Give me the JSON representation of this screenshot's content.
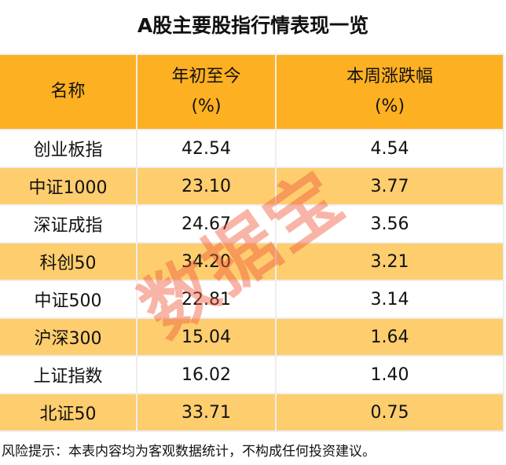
{
  "title": "A股主要股指行情表现一览",
  "chart_data": {
    "type": "table",
    "columns": [
      {
        "line1": "名称",
        "line2": ""
      },
      {
        "line1": "年初至今",
        "line2": "(%)"
      },
      {
        "line1": "本周涨跌幅",
        "line2": "(%)"
      }
    ],
    "rows": [
      [
        "创业板指",
        "42.54",
        "4.54"
      ],
      [
        "中证1000",
        "23.10",
        "3.77"
      ],
      [
        "深证成指",
        "24.67",
        "3.56"
      ],
      [
        "科创50",
        "34.20",
        "3.21"
      ],
      [
        "中证500",
        "22.81",
        "3.14"
      ],
      [
        "沪深300",
        "15.04",
        "1.64"
      ],
      [
        "上证指数",
        "16.02",
        "1.40"
      ],
      [
        "北证50",
        "33.71",
        "0.75"
      ]
    ]
  },
  "colors": {
    "header": "#fdb022",
    "row_alt": "#fecd6e",
    "row": "#ffffff",
    "watermark": "#f05a3c"
  },
  "watermark": "数据宝",
  "footer": "风险提示：本表内容均为客观数据统计，不构成任何投资建议。"
}
